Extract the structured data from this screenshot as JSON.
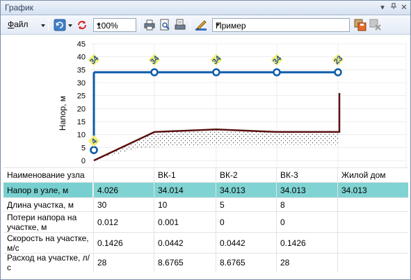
{
  "window": {
    "title": "График"
  },
  "toolbar": {
    "file_label": "Файл",
    "file_hotkey": "Ф",
    "file_rest": "айл",
    "zoom_value": "100%",
    "scheme_value": "Пример"
  },
  "chart_data": {
    "type": "line",
    "ylabel": "Напор, м",
    "y_ticks": [
      "45",
      "40",
      "35",
      "30",
      "25",
      "20",
      "15",
      "10",
      "5",
      "0"
    ],
    "ylim": [
      0,
      45
    ],
    "nodes": [
      {
        "label": "",
        "head": 4.026
      },
      {
        "label": "ВК-1",
        "head": 34.014
      },
      {
        "label": "ВК-2",
        "head": 34.013
      },
      {
        "label": "ВК-3",
        "head": 34.013
      },
      {
        "label": "Жилой дом",
        "head": 34.013
      }
    ],
    "node_badges": [
      "4",
      "34",
      "34",
      "34",
      "34",
      "23"
    ],
    "colors": {
      "pressure_line": "#0a5aa8",
      "ground_line": "#5a0f0f",
      "badge": "#f4ee7a"
    }
  },
  "table": {
    "columns": [
      "Наименование узла",
      "",
      "ВК-1",
      "ВК-2",
      "ВК-3",
      "Жилой дом"
    ],
    "rows": [
      {
        "label": "Напор в узле, м",
        "values": [
          "4.026",
          "34.014",
          "34.013",
          "34.013",
          "34.013"
        ],
        "highlight": true
      },
      {
        "label": "Длина участка, м",
        "values": [
          "30",
          "10",
          "5",
          "8",
          ""
        ]
      },
      {
        "label": "Потери напора на участке, м",
        "values": [
          "0.012",
          "0.001",
          "0",
          "0",
          ""
        ]
      },
      {
        "label": "Скорость на участке, м/с",
        "values": [
          "0.1426",
          "0.0442",
          "0.0442",
          "0.1426",
          ""
        ]
      },
      {
        "label": "Расход на участке, л/с",
        "values": [
          "28",
          "8.6765",
          "8.6765",
          "28",
          ""
        ]
      }
    ]
  }
}
